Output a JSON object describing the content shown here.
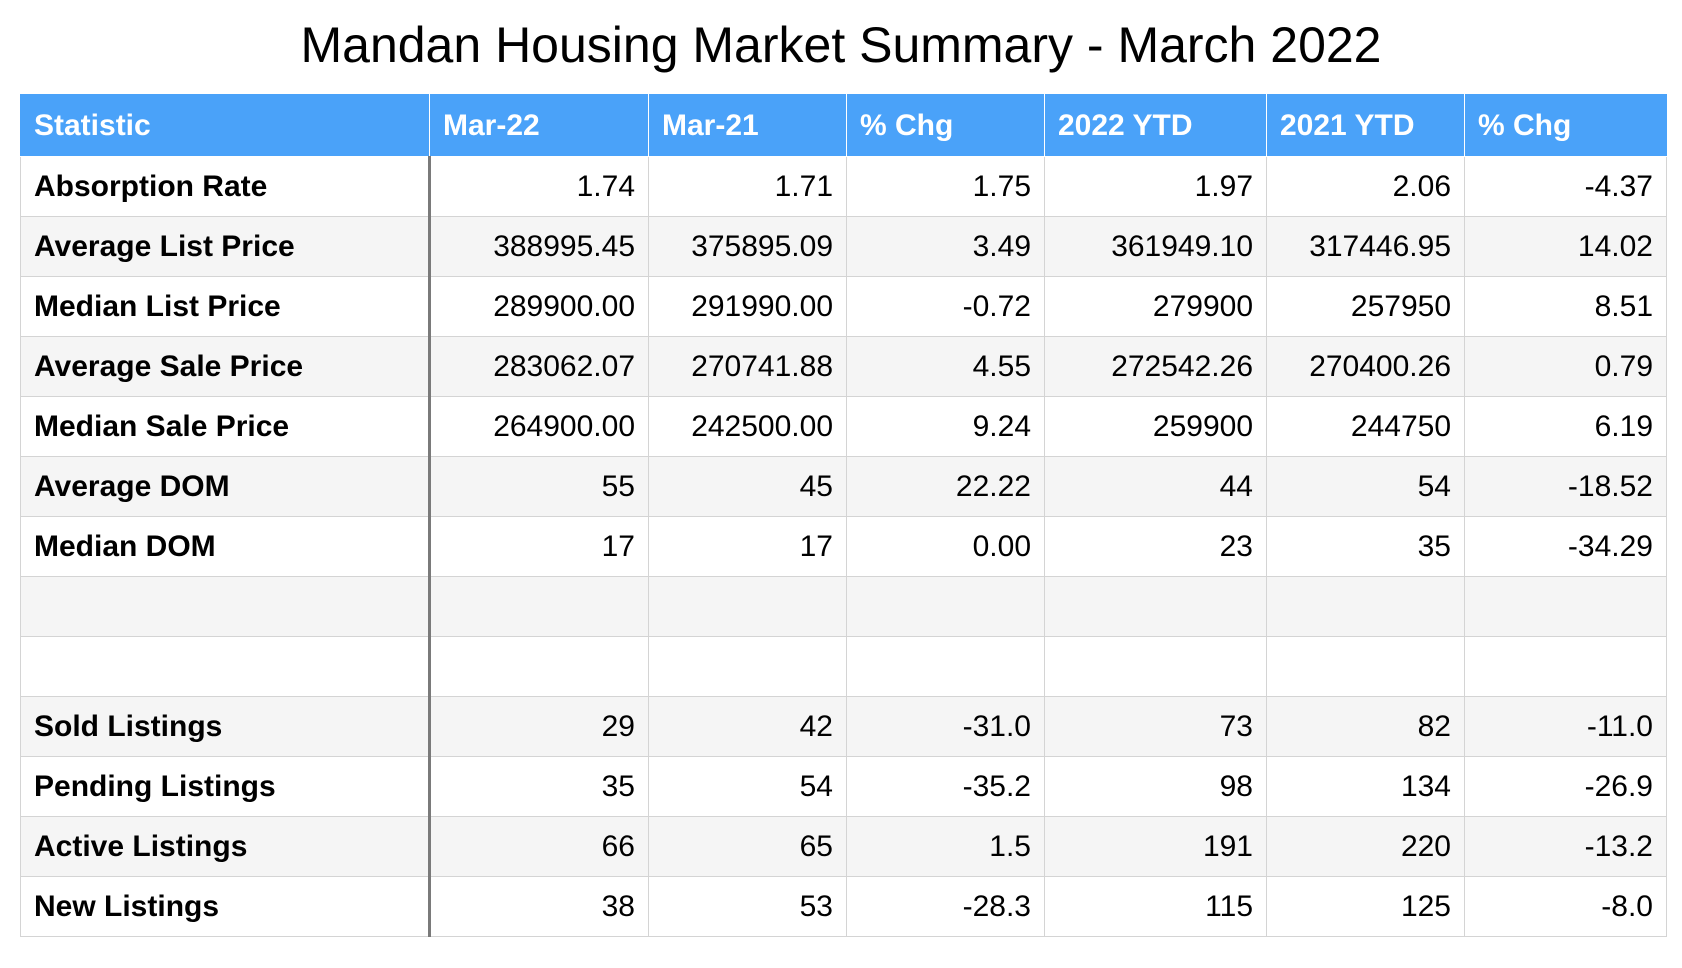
{
  "title": "Mandan Housing Market Summary - March 2022",
  "table": {
    "headers": [
      "Statistic",
      "Mar-22",
      "Mar-21",
      "% Chg",
      "2022 YTD",
      "2021 YTD",
      "% Chg"
    ],
    "rows": [
      [
        "Absorption Rate",
        "1.74",
        "1.71",
        "1.75",
        "1.97",
        "2.06",
        "-4.37"
      ],
      [
        "Average List Price",
        "388995.45",
        "375895.09",
        "3.49",
        "361949.10",
        "317446.95",
        "14.02"
      ],
      [
        "Median List Price",
        "289900.00",
        "291990.00",
        "-0.72",
        "279900",
        "257950",
        "8.51"
      ],
      [
        "Average Sale Price",
        "283062.07",
        "270741.88",
        "4.55",
        "272542.26",
        "270400.26",
        "0.79"
      ],
      [
        "Median Sale Price",
        "264900.00",
        "242500.00",
        "9.24",
        "259900",
        "244750",
        "6.19"
      ],
      [
        "Average DOM",
        "55",
        "45",
        "22.22",
        "44",
        "54",
        "-18.52"
      ],
      [
        "Median DOM",
        "17",
        "17",
        "0.00",
        "23",
        "35",
        "-34.29"
      ],
      [
        "",
        "",
        "",
        "",
        "",
        "",
        ""
      ],
      [
        "",
        "",
        "",
        "",
        "",
        "",
        ""
      ],
      [
        "Sold Listings",
        "29",
        "42",
        "-31.0",
        "73",
        "82",
        "-11.0"
      ],
      [
        "Pending Listings",
        "35",
        "54",
        "-35.2",
        "98",
        "134",
        "-26.9"
      ],
      [
        "Active Listings",
        "66",
        "65",
        "1.5",
        "191",
        "220",
        "-13.2"
      ],
      [
        "New Listings",
        "38",
        "53",
        "-28.3",
        "115",
        "125",
        "-8.0"
      ]
    ]
  },
  "colors": {
    "header_background": "#4aa2f9",
    "header_text": "#ffffff",
    "stripe": "#f5f5f5",
    "grid": "#d4d4d4",
    "label_divider": "#7a7a7a"
  }
}
